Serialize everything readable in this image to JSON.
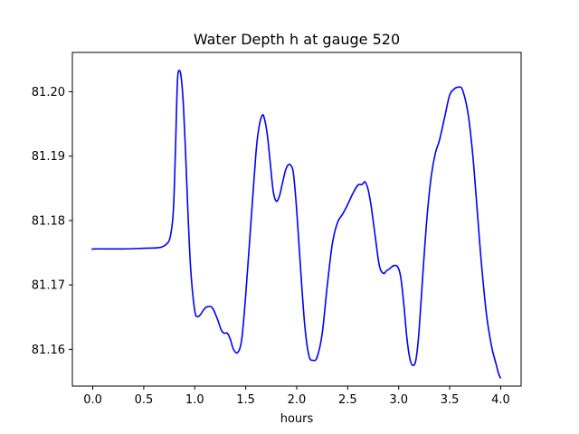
{
  "chart_data": {
    "type": "line",
    "title": "Water Depth h at gauge 520",
    "xlabel": "hours",
    "ylabel": "",
    "xlim": [
      -0.2,
      4.2
    ],
    "ylim": [
      81.1543,
      81.2061
    ],
    "x_ticks": [
      0.0,
      0.5,
      1.0,
      1.5,
      2.0,
      2.5,
      3.0,
      3.5,
      4.0
    ],
    "x_tick_labels": [
      "0.0",
      "0.5",
      "1.0",
      "1.5",
      "2.0",
      "2.5",
      "3.0",
      "3.5",
      "4.0"
    ],
    "y_ticks": [
      81.16,
      81.17,
      81.18,
      81.19,
      81.2
    ],
    "y_tick_labels": [
      "81.16",
      "81.17",
      "81.18",
      "81.19",
      "81.20"
    ],
    "grid": false,
    "legend": "none",
    "colors": {
      "line": "#0000ff",
      "axes": "#000000"
    },
    "series": [
      {
        "x": [
          0.0,
          0.02,
          0.3,
          0.5,
          0.65,
          0.72,
          0.76,
          0.79,
          0.81,
          0.83,
          0.85,
          0.87,
          0.89,
          0.91,
          0.93,
          0.96,
          1.0,
          1.03,
          1.06,
          1.09,
          1.12,
          1.17,
          1.22,
          1.26,
          1.29,
          1.32,
          1.35,
          1.38,
          1.42,
          1.46,
          1.5,
          1.55,
          1.6,
          1.63,
          1.66,
          1.68,
          1.71,
          1.74,
          1.77,
          1.8,
          1.83,
          1.86,
          1.89,
          1.92,
          1.95,
          1.97,
          2.0,
          2.04,
          2.08,
          2.12,
          2.16,
          2.2,
          2.25,
          2.3,
          2.35,
          2.4,
          2.45,
          2.5,
          2.55,
          2.6,
          2.64,
          2.67,
          2.7,
          2.73,
          2.77,
          2.81,
          2.85,
          2.88,
          2.91,
          2.95,
          2.99,
          3.02,
          3.05,
          3.08,
          3.11,
          3.14,
          3.17,
          3.2,
          3.24,
          3.28,
          3.32,
          3.36,
          3.4,
          3.45,
          3.5,
          3.55,
          3.58,
          3.61,
          3.63,
          3.66,
          3.69,
          3.73,
          3.77,
          3.81,
          3.86,
          3.91,
          3.95,
          3.98,
          4.0
        ],
        "y": [
          81.1755,
          81.1756,
          81.1756,
          81.1757,
          81.1758,
          81.1763,
          81.1775,
          81.1815,
          81.1905,
          81.2015,
          81.2033,
          81.2018,
          81.1975,
          81.1905,
          81.1825,
          81.1725,
          81.166,
          81.1651,
          81.1655,
          81.1662,
          81.1666,
          81.1665,
          81.1648,
          81.163,
          81.1625,
          81.1625,
          81.1615,
          81.16,
          81.1595,
          81.1615,
          81.1685,
          81.1795,
          81.1905,
          81.1945,
          81.1963,
          81.196,
          81.1935,
          81.189,
          81.1845,
          81.183,
          81.1838,
          81.1858,
          81.1878,
          81.1887,
          81.1884,
          81.187,
          81.1815,
          81.172,
          81.1635,
          81.159,
          81.1583,
          81.1588,
          81.1625,
          81.17,
          81.1765,
          81.1797,
          81.181,
          81.1825,
          81.1842,
          81.1855,
          81.1856,
          81.186,
          81.1848,
          81.1822,
          81.1775,
          81.173,
          81.1718,
          81.1722,
          81.1725,
          81.173,
          81.1728,
          81.1712,
          81.167,
          81.1618,
          81.1585,
          81.1575,
          81.1585,
          81.163,
          81.1725,
          81.181,
          81.187,
          81.1905,
          81.1925,
          81.196,
          81.1995,
          81.2005,
          81.2007,
          81.2007,
          81.2001,
          81.1983,
          81.1955,
          81.1895,
          81.1815,
          81.1735,
          81.1655,
          81.1605,
          81.158,
          81.1562,
          81.1555
        ]
      }
    ]
  }
}
